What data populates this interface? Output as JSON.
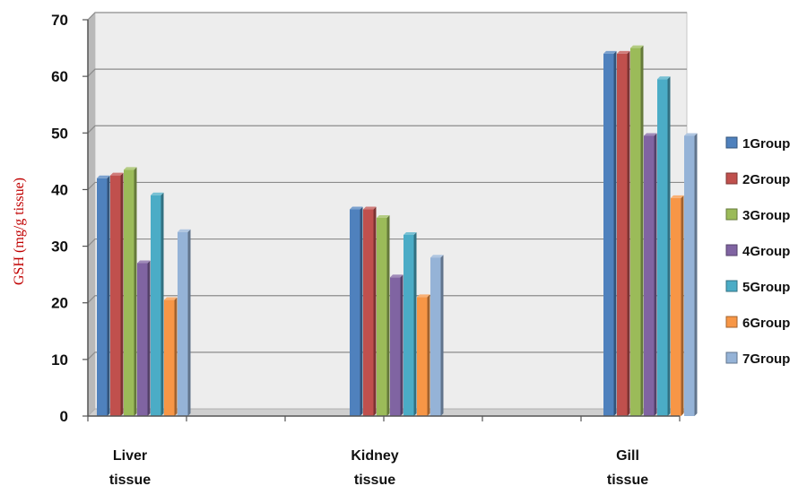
{
  "chart_data": {
    "type": "bar",
    "title": "",
    "xlabel": "",
    "ylabel": "GSH (mg/g tissue)",
    "ylim": [
      0,
      70
    ],
    "yticks": [
      "0",
      "10",
      "20",
      "30",
      "40",
      "50",
      "60",
      "70"
    ],
    "grid": true,
    "legend_position": "right",
    "categories": [
      [
        "Liver",
        "tissue"
      ],
      [
        "Kidney",
        "tissue"
      ],
      [
        "Gill",
        "tissue"
      ]
    ],
    "series": [
      {
        "name": "1Group",
        "color": "#4f81bd",
        "values": [
          42,
          36.5,
          64
        ]
      },
      {
        "name": "2Group",
        "color": "#c0504d",
        "values": [
          42.5,
          36.5,
          64
        ]
      },
      {
        "name": "3Group",
        "color": "#9bbb59",
        "values": [
          43.5,
          35,
          65
        ]
      },
      {
        "name": "4Group",
        "color": "#8064a2",
        "values": [
          27,
          24.5,
          49.5
        ]
      },
      {
        "name": "5Group",
        "color": "#4bacc6",
        "values": [
          39,
          32,
          59.5
        ]
      },
      {
        "name": "6Group",
        "color": "#f79646",
        "values": [
          20.5,
          21,
          38.5
        ]
      },
      {
        "name": "7Group",
        "color": "#95b3d7",
        "values": [
          32.5,
          28,
          49.5
        ]
      }
    ]
  }
}
